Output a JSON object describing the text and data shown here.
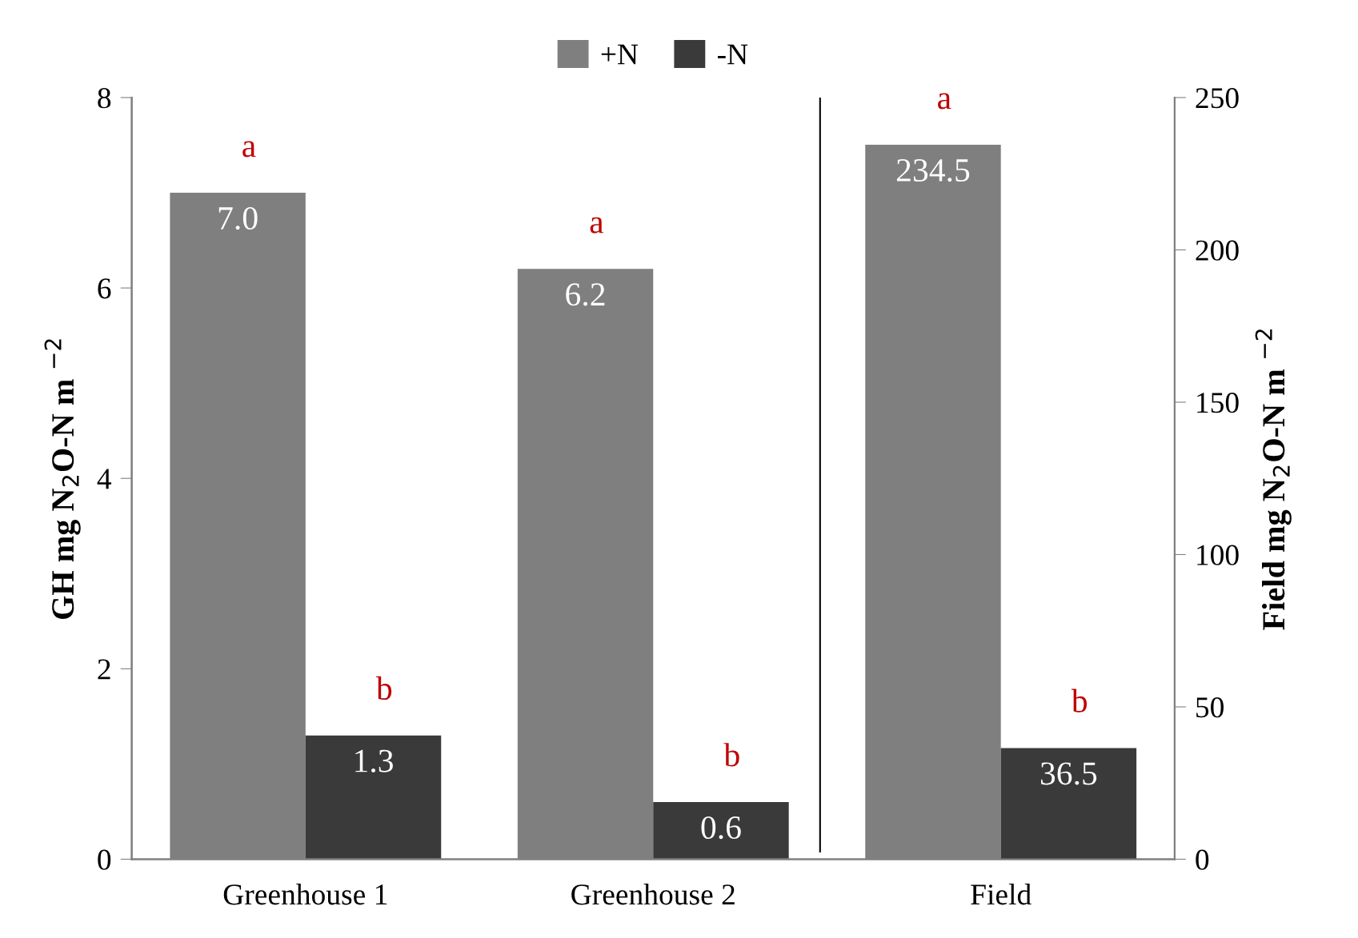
{
  "chart_data": {
    "type": "bar",
    "categories": [
      "Greenhouse 1",
      "Greenhouse 2",
      "Field"
    ],
    "series": [
      {
        "name": "+N",
        "color": "#7f7f7f",
        "values": [
          7.0,
          6.2,
          null
        ],
        "value_labels": [
          "7.0",
          "6.2",
          null
        ]
      },
      {
        "name": "-N",
        "color": "#3a3a3a",
        "values": [
          1.3,
          0.6,
          null
        ],
        "value_labels": [
          "1.3",
          "0.6",
          null
        ]
      },
      {
        "color": "#7f7f7f",
        "values": [
          null,
          null,
          234.5
        ],
        "axis": "y2",
        "value_labels": [
          null,
          null,
          "234.5"
        ]
      },
      {
        "color": "#3a3a3a",
        "values": [
          null,
          null,
          36.5
        ],
        "axis": "y2",
        "value_labels": [
          null,
          null,
          "36.5"
        ]
      }
    ],
    "ylabel": "GH mg N$_{2}$O-N m $^{−2}$",
    "y2label": "Field mg N$_{2}$O-N m $^{−2}$",
    "ylim": [
      0,
      8
    ],
    "yticks": [
      0,
      2,
      4,
      6,
      8
    ],
    "y2lim": [
      0,
      250
    ],
    "y2ticks": [
      0,
      50,
      100,
      150,
      200,
      250
    ],
    "legend": "top",
    "grid": false,
    "annotations": [
      "a",
      "b",
      "a",
      "b",
      "a",
      "b"
    ]
  }
}
